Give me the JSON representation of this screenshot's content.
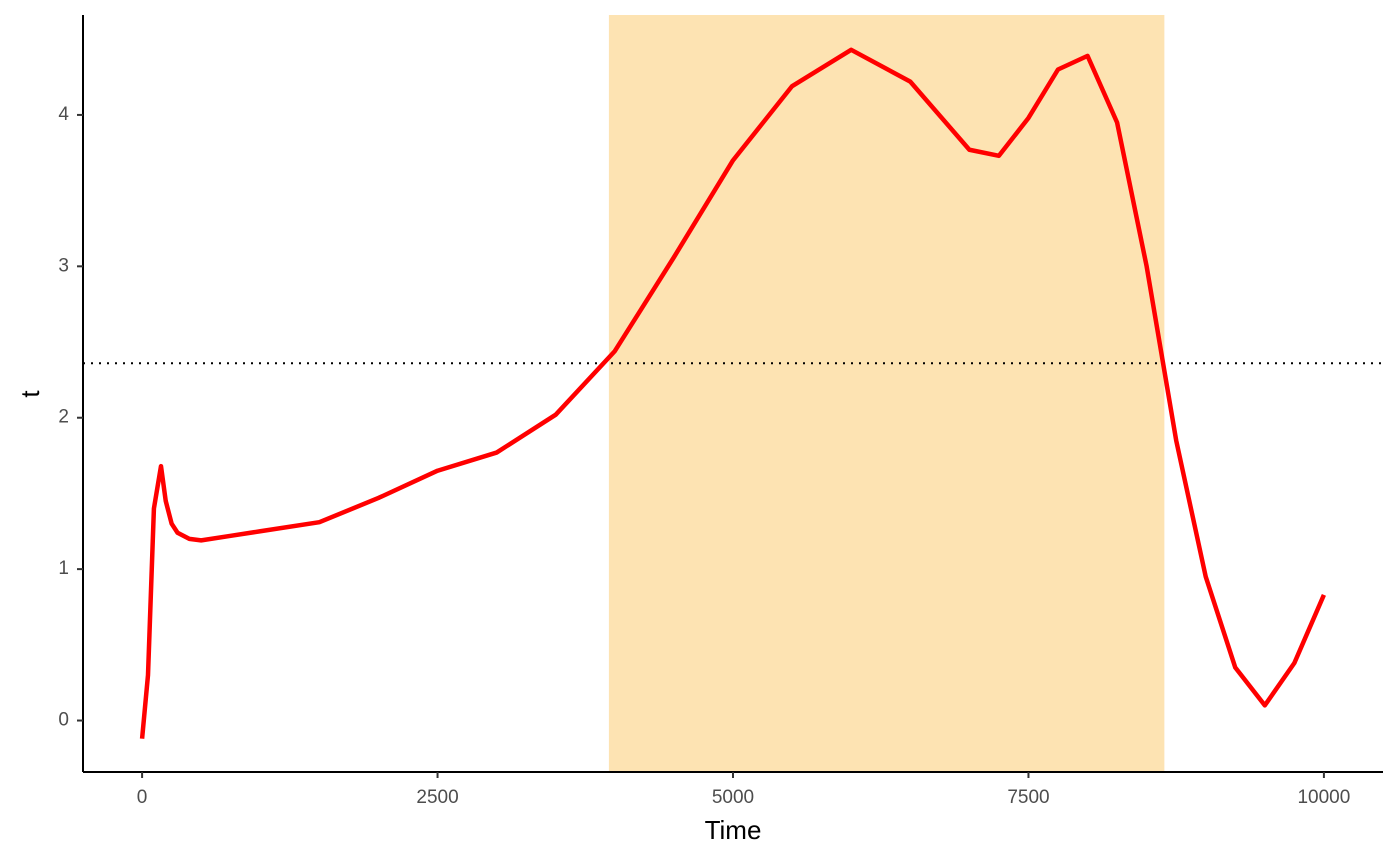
{
  "chart_data": {
    "type": "line",
    "x_label": "Time",
    "y_label": "t",
    "x": [
      0,
      50,
      100,
      160,
      200,
      250,
      300,
      400,
      500,
      750,
      1000,
      1500,
      2000,
      2500,
      3000,
      3500,
      4000,
      4500,
      5000,
      5500,
      6000,
      6500,
      7000,
      7250,
      7500,
      7750,
      8000,
      8250,
      8500,
      8750,
      9000,
      9250,
      9500,
      9750,
      10000
    ],
    "series": [
      {
        "color": "#ff0000",
        "values": [
          -0.12,
          0.3,
          1.4,
          1.68,
          1.45,
          1.3,
          1.24,
          1.2,
          1.19,
          1.22,
          1.25,
          1.31,
          1.47,
          1.65,
          1.77,
          2.02,
          2.44,
          3.06,
          3.7,
          4.19,
          4.43,
          4.22,
          3.77,
          3.73,
          3.98,
          4.3,
          4.39,
          3.95,
          3.0,
          1.85,
          0.95,
          0.35,
          0.1,
          0.38,
          0.83
        ]
      }
    ],
    "threshold": 2.36,
    "highlight": [
      3950,
      8650
    ],
    "highlight_color": "#fde3b2",
    "xlim": [
      -500,
      10500
    ],
    "ylim": [
      -0.34,
      4.66
    ],
    "xticks": [
      0,
      2500,
      5000,
      7500,
      10000
    ],
    "yticks": [
      0,
      1,
      2,
      3,
      4
    ],
    "grid": false
  }
}
